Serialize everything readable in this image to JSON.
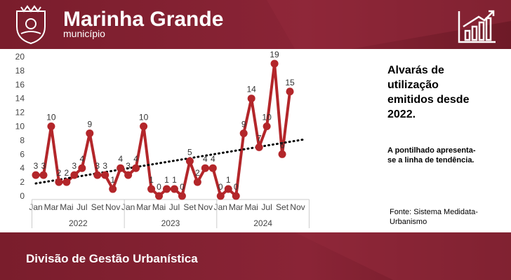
{
  "header": {
    "title": "Marinha Grande",
    "subtitle": "município"
  },
  "chart_data": {
    "type": "line",
    "categories": [
      "Jan",
      null,
      "Mar",
      null,
      "Mai",
      null,
      "Jul",
      null,
      "Set",
      null,
      "Nov",
      null,
      "Jan",
      null,
      "Mar",
      null,
      "Mai",
      null,
      "Jul",
      null,
      "Set",
      null,
      "Nov",
      null,
      "Jan",
      null,
      "Mar",
      null,
      "Mai",
      null,
      "Jul",
      null,
      "Set",
      null,
      "Nov",
      null
    ],
    "groups": [
      "2022",
      "2023",
      "2024"
    ],
    "series": [
      {
        "name": "Alvarás",
        "color": "#b3262a",
        "values": [
          3,
          3,
          10,
          2,
          2,
          3,
          4,
          9,
          3,
          3,
          1,
          4,
          3,
          4,
          10,
          1,
          0,
          1,
          1,
          0,
          5,
          2,
          4,
          4,
          0,
          1,
          0,
          9,
          14,
          7,
          10,
          19,
          6,
          15,
          null,
          null
        ]
      }
    ],
    "ylim": [
      0,
      20
    ],
    "yticks": [
      0,
      2,
      4,
      6,
      8,
      10,
      12,
      14,
      16,
      18,
      20
    ],
    "grid": false,
    "trendline": true,
    "data_labels": true
  },
  "sidebar": {
    "heading": "Alvarás de utilização emitidos desde 2022.",
    "note": "A pontilhado apresenta-se a linha de tendência.",
    "source": "Fonte: Sistema Medidata-Urbanismo"
  },
  "footer": {
    "text": "Divisão de Gestão Urbanística"
  }
}
